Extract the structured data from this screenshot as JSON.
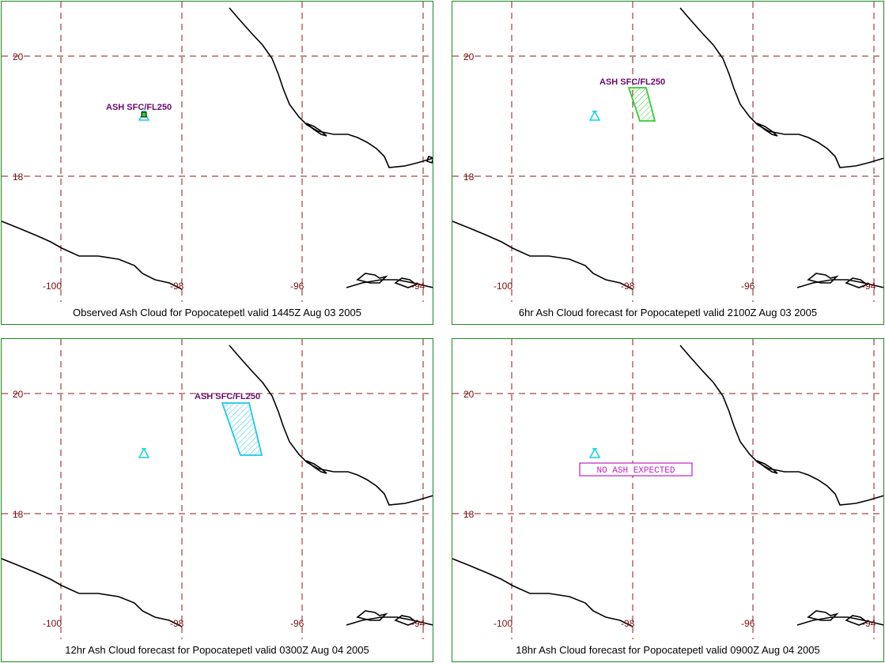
{
  "colors": {
    "grid": "#8b1a1a",
    "coast": "#000000",
    "volcano": "#17d4e0",
    "ash_cloud_6hr": "#32cd32",
    "ash_cloud_12hr": "#1ec8e6",
    "ash_label": "#6a0a6a",
    "no_ash_label": "#c020c0",
    "panel_border": "#1c8a1c"
  },
  "panels": [
    {
      "caption": "Observed Ash Cloud for Popocatepetl valid 1445Z Aug 03 2005",
      "lat_labels": [
        "20",
        "18"
      ],
      "lon_labels": [
        "-100",
        "-98",
        "-96",
        "-94"
      ],
      "ash_label": "ASH SFC/FL250",
      "volcano_icon": "volcano-icon"
    },
    {
      "caption": "6hr Ash Cloud forecast for Popocatepetl valid 2100Z Aug 03 2005",
      "lat_labels": [
        "20",
        "18"
      ],
      "lon_labels": [
        "-100",
        "-98",
        "-96",
        "-94"
      ],
      "ash_label": "ASH SFC/FL250",
      "volcano_icon": "volcano-icon"
    },
    {
      "caption": "12hr Ash Cloud forecast for Popocatepetl valid 0300Z Aug 04 2005",
      "lat_labels": [
        "20",
        "18"
      ],
      "lon_labels": [
        "-100",
        "-98",
        "-96",
        "-94"
      ],
      "ash_label": "ASH SFC/FL250",
      "volcano_icon": "volcano-icon"
    },
    {
      "caption": "18hr Ash Cloud forecast for Popocatepetl valid 0900Z Aug 04 2005",
      "lat_labels": [
        "20",
        "18"
      ],
      "lon_labels": [
        "-100",
        "-98",
        "-96",
        "-94"
      ],
      "no_ash_label": "NO ASH EXPECTED",
      "volcano_icon": "volcano-icon"
    }
  ]
}
